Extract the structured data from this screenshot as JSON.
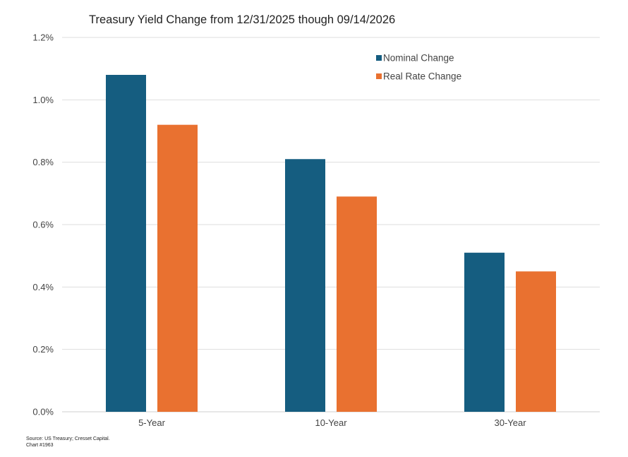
{
  "chart_data": {
    "type": "bar",
    "title": "Treasury Yield Change from 12/31/2025 though 09/14/2026",
    "categories": [
      "5-Year",
      "10-Year",
      "30-Year"
    ],
    "series": [
      {
        "name": "Nominal Change",
        "color": "#155d80",
        "values": [
          1.08,
          0.81,
          0.51
        ]
      },
      {
        "name": "Real Rate Change",
        "color": "#e97130",
        "values": [
          0.92,
          0.69,
          0.45
        ]
      }
    ],
    "ylim": [
      0,
      1.2
    ],
    "yticks": [
      "0.0%",
      "0.2%",
      "0.4%",
      "0.6%",
      "0.8%",
      "1.0%",
      "1.2%"
    ],
    "ytick_values": [
      0,
      0.2,
      0.4,
      0.6,
      0.8,
      1.0,
      1.2
    ],
    "grid": true,
    "legend_position": "top-right"
  },
  "footer": {
    "source": "Source: US Treasury; Cresset Capital.",
    "chart_id": "Chart #1963"
  }
}
